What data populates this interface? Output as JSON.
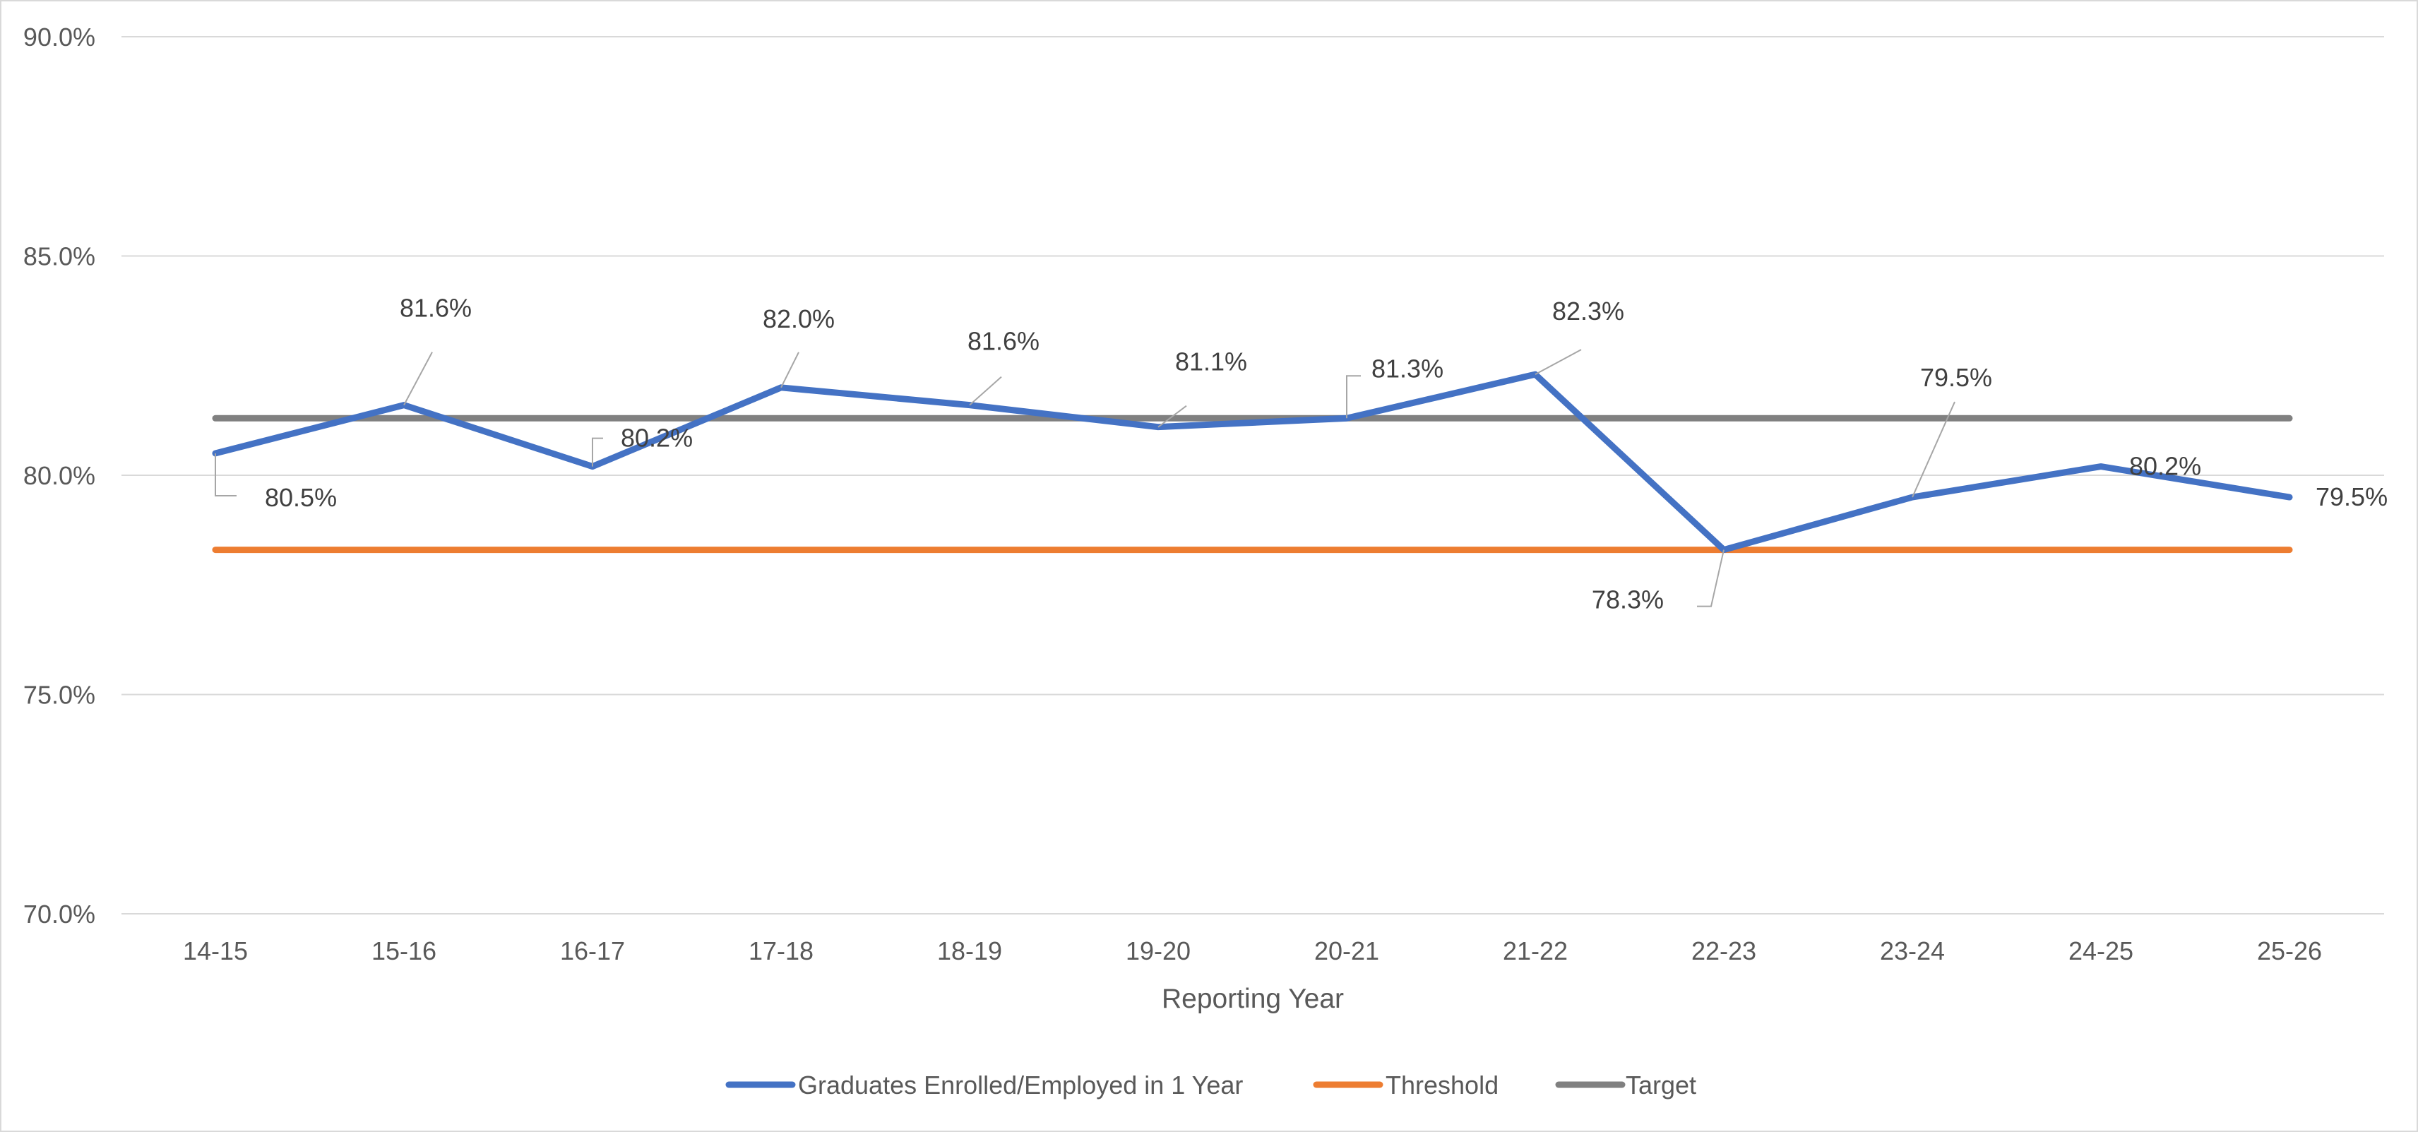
{
  "chart_data": {
    "type": "line",
    "title": "",
    "xlabel": "Reporting Year",
    "ylabel": "",
    "ylim": [
      70.0,
      90.0
    ],
    "y_ticks": [
      70.0,
      75.0,
      80.0,
      85.0,
      90.0
    ],
    "y_tick_labels": [
      "70.0%",
      "75.0%",
      "80.0%",
      "85.0%",
      "90.0%"
    ],
    "grid": true,
    "legend_position": "bottom",
    "categories": [
      "14-15",
      "15-16",
      "16-17",
      "17-18",
      "18-19",
      "19-20",
      "20-21",
      "21-22",
      "22-23",
      "23-24",
      "24-25",
      "25-26"
    ],
    "series": [
      {
        "name": "Graduates Enrolled/Employed in 1 Year",
        "color": "#4472c4",
        "values": [
          80.5,
          81.6,
          80.2,
          82.0,
          81.6,
          81.1,
          81.3,
          82.3,
          78.3,
          79.5,
          80.2,
          79.5
        ],
        "data_labels": [
          "80.5%",
          "81.6%",
          "80.2%",
          "82.0%",
          "81.6%",
          "81.1%",
          "81.3%",
          "82.3%",
          "78.3%",
          "79.5%",
          "80.2%",
          "79.5%"
        ]
      },
      {
        "name": "Threshold",
        "color": "#ed7d31",
        "values": [
          78.3,
          78.3,
          78.3,
          78.3,
          78.3,
          78.3,
          78.3,
          78.3,
          78.3,
          78.3,
          78.3,
          78.3
        ]
      },
      {
        "name": "Target",
        "color": "#808080",
        "values": [
          81.3,
          81.3,
          81.3,
          81.3,
          81.3,
          81.3,
          81.3,
          81.3,
          81.3,
          81.3,
          81.3,
          81.3
        ]
      }
    ]
  }
}
